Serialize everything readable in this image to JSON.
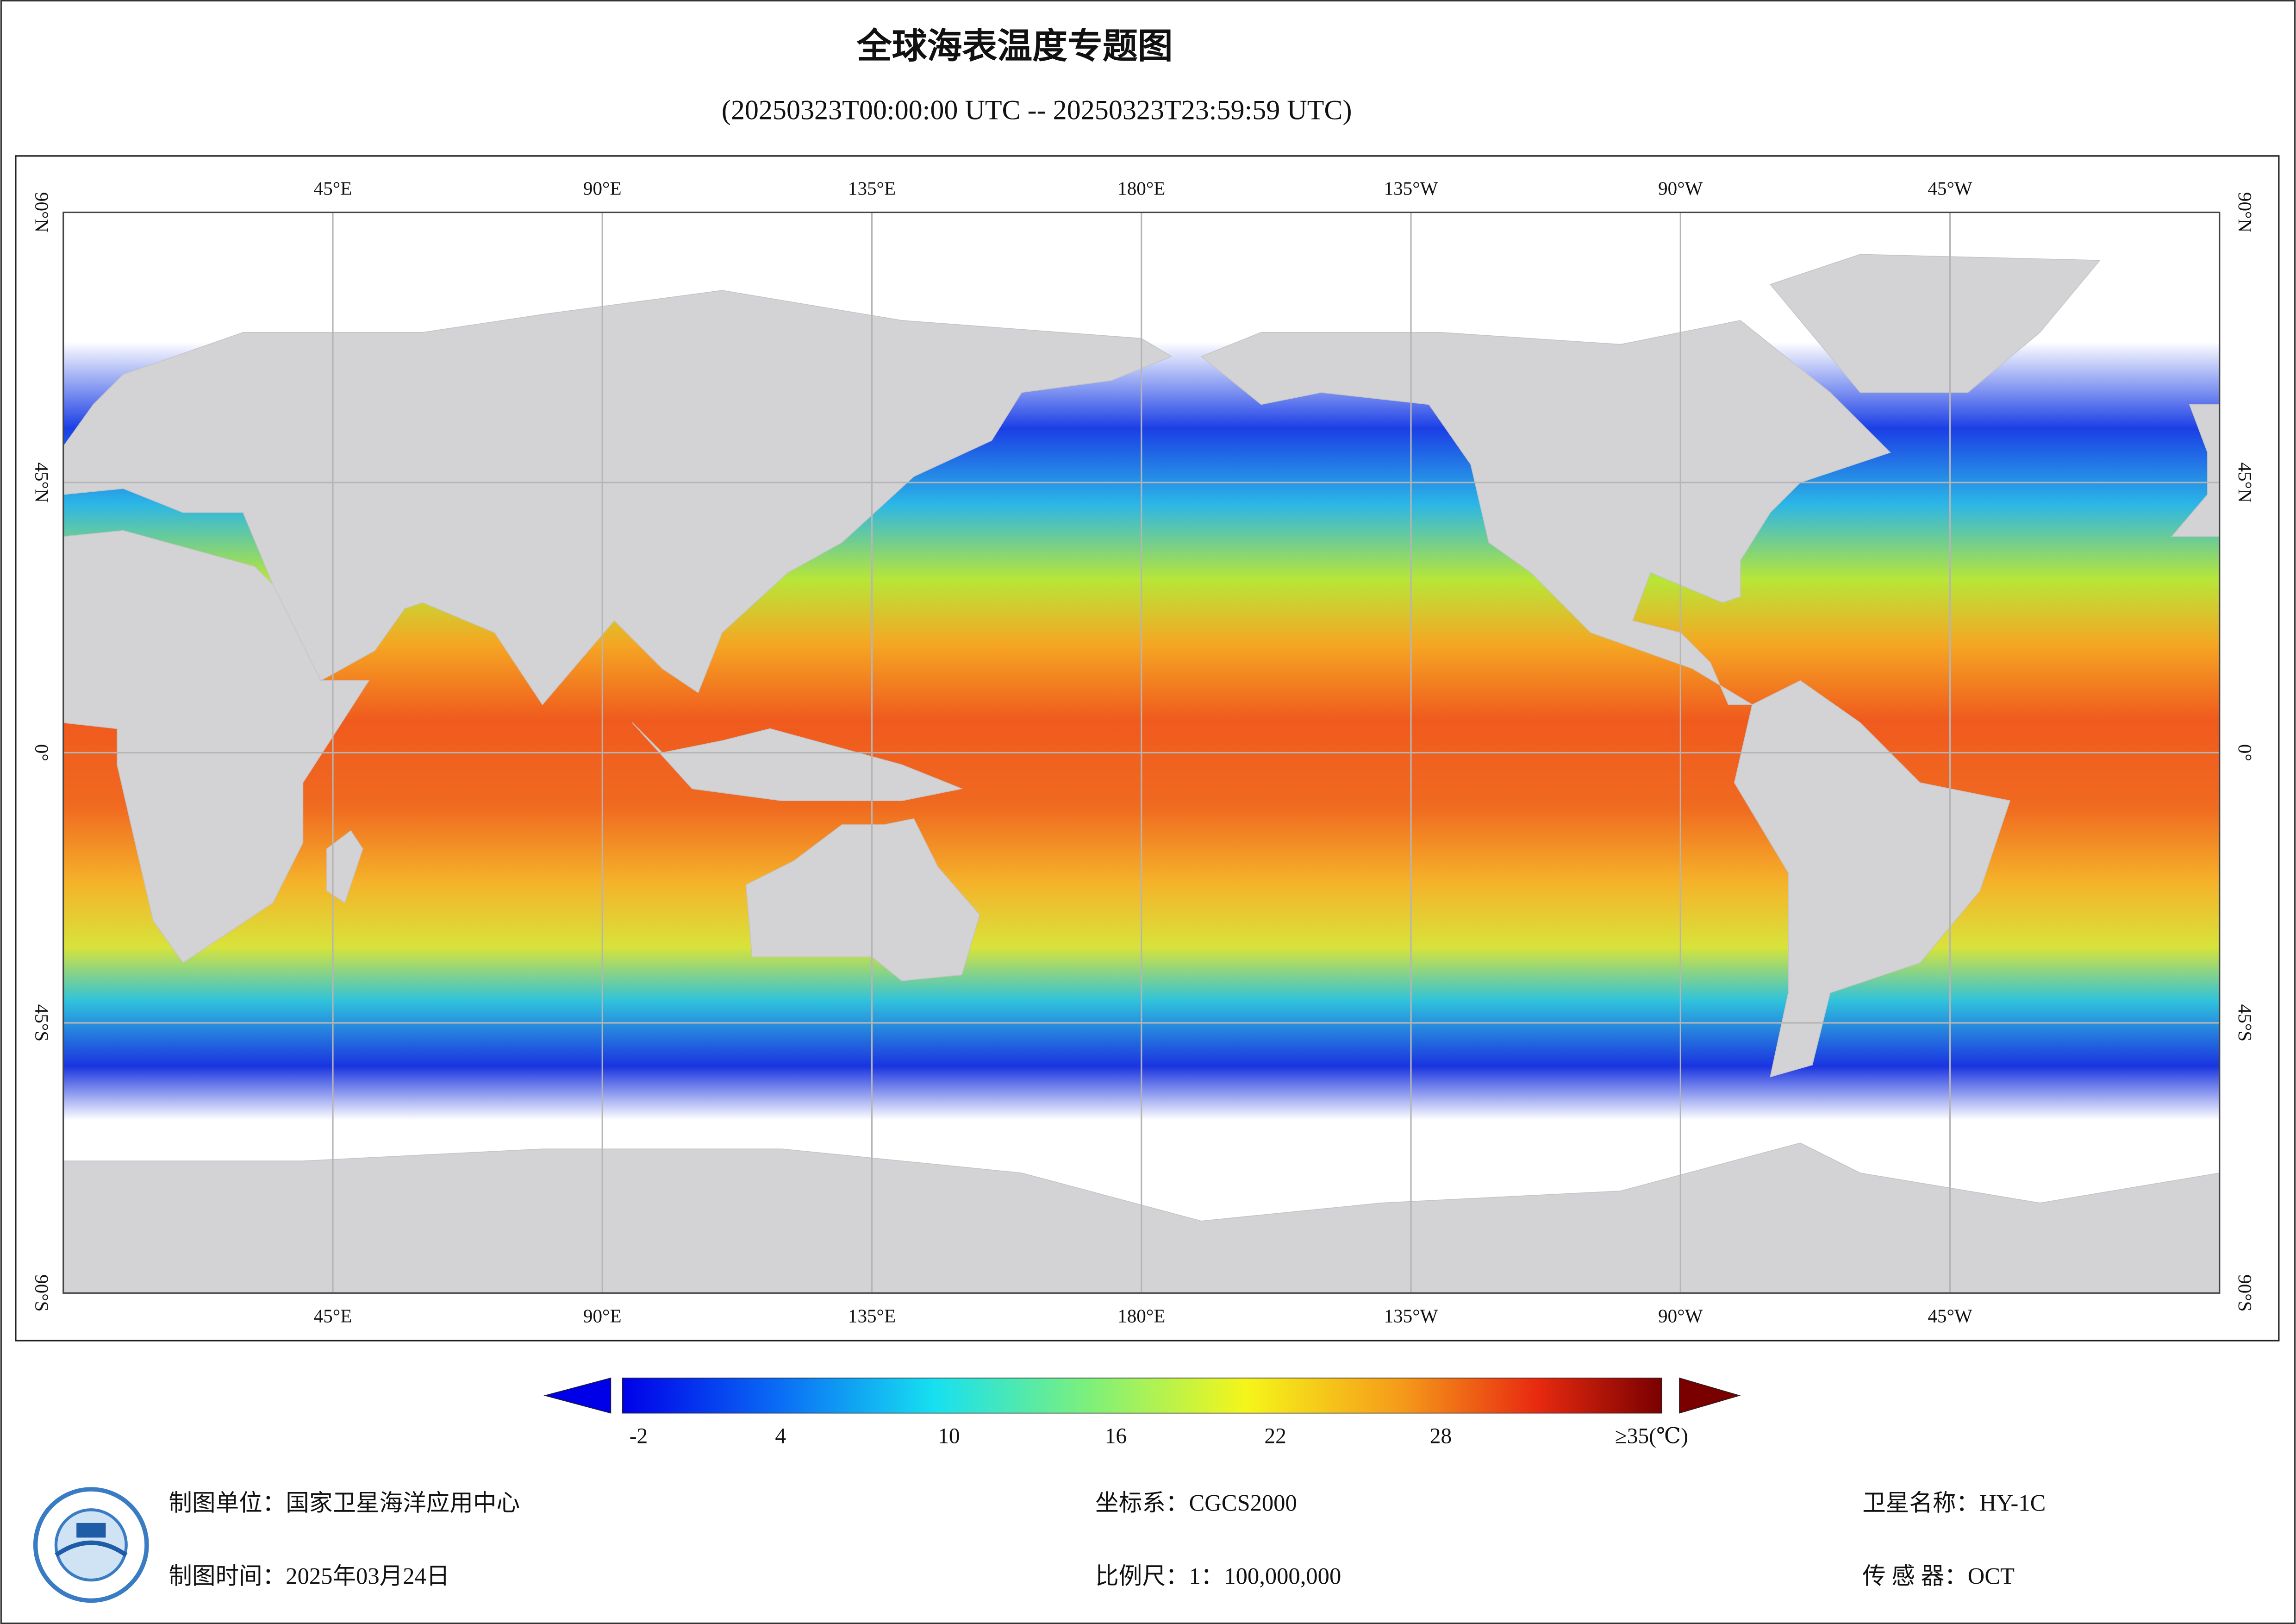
{
  "title": "全球海表温度专题图",
  "subtitle": "(20250323T00:00:00 UTC -- 20250323T23:59:59 UTC)",
  "map": {
    "longitude_labels": [
      "45°E",
      "90°E",
      "135°E",
      "180°E",
      "135°W",
      "90°W",
      "45°W"
    ],
    "latitude_labels": [
      "90°N",
      "45°N",
      "0°",
      "45°S",
      "90°S"
    ]
  },
  "colorbar": {
    "labels": [
      "-2",
      "4",
      "10",
      "16",
      "22",
      "28",
      "≥35(℃)"
    ]
  },
  "footer": {
    "unit": "制图单位：国家卫星海洋应用中心",
    "date": "制图时间：2025年03月24日",
    "crs": "坐标系：CGCS2000",
    "scale": "比例尺：1：100,000,000",
    "satellite": "卫星名称：HY-1C",
    "sensor": "传 感 器：OCT"
  }
}
